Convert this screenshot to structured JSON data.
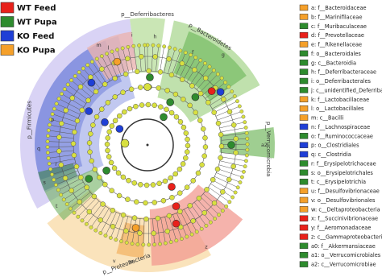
{
  "legend": [
    {
      "label": "WT Feed",
      "color": "#e8211b"
    },
    {
      "label": "WT Pupa",
      "color": "#2e8b2e"
    },
    {
      "label": "KO Feed",
      "color": "#1f3fd6"
    },
    {
      "label": "KO Pupa",
      "color": "#f5a02a"
    }
  ],
  "phyla": [
    "p__Deferribacteres",
    "p__Bacteroidetes",
    "p__Verrucomicrobia",
    "p__Proteobacteria",
    "p__Firmicutes"
  ],
  "clade_letters": [
    "a2",
    "z",
    "w",
    "v",
    "t",
    "s",
    "r",
    "q",
    "p",
    "m",
    "l",
    "i",
    "h",
    "g",
    "f"
  ],
  "taxa": [
    {
      "text": "a: f__Bacteroidaceae",
      "color": "#f5a02a"
    },
    {
      "text": "b: f__Marinifilaceae",
      "color": "#f5a02a"
    },
    {
      "text": "c: f__Muribaculaceae",
      "color": "#2e8b2e"
    },
    {
      "text": "d: f__Prevotellaceae",
      "color": "#e8211b"
    },
    {
      "text": "e: f__Rikenellaceae",
      "color": "#f5a02a"
    },
    {
      "text": "f: o__Bacteroidales",
      "color": "#2e8b2e"
    },
    {
      "text": "g: c__Bacteroidia",
      "color": "#2e8b2e"
    },
    {
      "text": "h: f__Deferribacteraceae",
      "color": "#2e8b2e"
    },
    {
      "text": "i: o__Deferribacterales",
      "color": "#2e8b2e"
    },
    {
      "text": "j: c__unidentified_Deferribacter",
      "color": "#2e8b2e"
    },
    {
      "text": "k: f__Lactobacillaceae",
      "color": "#f5a02a"
    },
    {
      "text": "l: o__Lactobacillales",
      "color": "#f5a02a"
    },
    {
      "text": "m: c__Bacilli",
      "color": "#f5a02a"
    },
    {
      "text": "n: f__Lachnospiraceae",
      "color": "#1f3fd6"
    },
    {
      "text": "o: f__Ruminococcaceae",
      "color": "#2e8b2e"
    },
    {
      "text": "p: o__Clostridiales",
      "color": "#1f3fd6"
    },
    {
      "text": "q: c__Clostridia",
      "color": "#1f3fd6"
    },
    {
      "text": "r: f__Erysipelotrichaceae",
      "color": "#2e8b2e"
    },
    {
      "text": "s: o__Erysipelotrichales",
      "color": "#2e8b2e"
    },
    {
      "text": "t: c__Erysipelotrichia",
      "color": "#2e8b2e"
    },
    {
      "text": "u: f__Desulfovibrionaceae",
      "color": "#f5a02a"
    },
    {
      "text": "v: o__Desulfovibrionales",
      "color": "#f5a02a"
    },
    {
      "text": "w: c__Deltaproteobacteria",
      "color": "#f5a02a"
    },
    {
      "text": "x: f__Succinivibrionaceae",
      "color": "#e8211b"
    },
    {
      "text": "y: f__Aeromonadaceae",
      "color": "#e8211b"
    },
    {
      "text": "z: c__Gammaproteobacteria",
      "color": "#e8211b"
    },
    {
      "text": "a0: f__Akkermansiaceae",
      "color": "#2e8b2e"
    },
    {
      "text": "a1: o__Verrucomicrobiales",
      "color": "#2e8b2e"
    },
    {
      "text": "a2: c__Verrucomicrobiae",
      "color": "#2e8b2e"
    }
  ]
}
